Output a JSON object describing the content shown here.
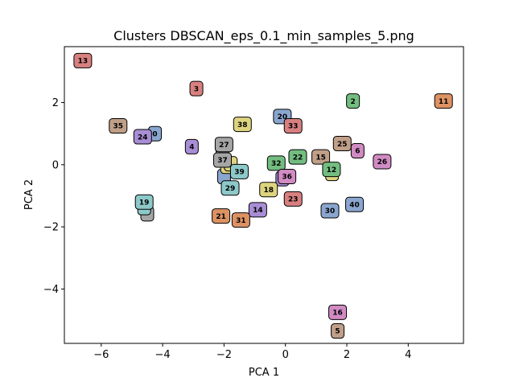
{
  "chart_data": {
    "type": "scatter",
    "title": "Clusters DBSCAN_eps_0.1_min_samples_5.png",
    "xlabel": "PCA 1",
    "ylabel": "PCA 2",
    "xlim": [
      -7.2,
      5.8
    ],
    "ylim": [
      -5.75,
      3.8
    ],
    "xticks": [
      -6,
      -4,
      -2,
      0,
      2,
      4
    ],
    "yticks": [
      -4,
      -2,
      0,
      2
    ],
    "xtick_labels": [
      "−6",
      "−4",
      "−2",
      "0",
      "2",
      "4"
    ],
    "ytick_labels": [
      "−4",
      "−2",
      "0",
      "2"
    ],
    "grid": false,
    "legend": "none",
    "points": [
      {
        "label": "",
        "x": -2.05,
        "y": 0.42,
        "color": "#a5a5a5"
      },
      {
        "label": "",
        "x": -2.0,
        "y": -0.38,
        "color": "#8aa6cf"
      },
      {
        "label": "",
        "x": -1.9,
        "y": -0.05,
        "color": "#ddd47f"
      },
      {
        "label": "",
        "x": -1.78,
        "y": 0.03,
        "color": "#ddd47f"
      },
      {
        "label": "",
        "x": -0.1,
        "y": -0.45,
        "color": "#a88ed4"
      },
      {
        "label": "",
        "x": 1.52,
        "y": -0.28,
        "color": "#ddd47f"
      },
      {
        "label": "",
        "x": -4.5,
        "y": -1.58,
        "color": "#a5a5a5"
      },
      {
        "label": "",
        "x": -4.6,
        "y": -1.38,
        "color": "#8ec9c9"
      },
      {
        "label": "13",
        "x": -6.6,
        "y": 3.35,
        "color": "#d88080"
      },
      {
        "label": "3",
        "x": -2.9,
        "y": 2.45,
        "color": "#d88080"
      },
      {
        "label": "2",
        "x": 2.2,
        "y": 2.05,
        "color": "#73bd80"
      },
      {
        "label": "11",
        "x": 5.15,
        "y": 2.05,
        "color": "#dd9264"
      },
      {
        "label": "20",
        "x": -0.1,
        "y": 1.55,
        "color": "#8aa6cf"
      },
      {
        "label": "33",
        "x": 0.25,
        "y": 1.25,
        "color": "#d88080"
      },
      {
        "label": "38",
        "x": -1.4,
        "y": 1.3,
        "color": "#ddd47f"
      },
      {
        "label": "35",
        "x": -5.45,
        "y": 1.25,
        "color": "#c09f88"
      },
      {
        "label": "0",
        "x": -4.25,
        "y": 1.0,
        "color": "#8aa6cf"
      },
      {
        "label": "24",
        "x": -4.65,
        "y": 0.9,
        "color": "#a88ed4"
      },
      {
        "label": "4",
        "x": -3.05,
        "y": 0.58,
        "color": "#a88ed4"
      },
      {
        "label": "27",
        "x": -2.0,
        "y": 0.65,
        "color": "#a5a5a5"
      },
      {
        "label": "37",
        "x": -2.05,
        "y": 0.15,
        "color": "#a5a5a5"
      },
      {
        "label": "25",
        "x": 1.85,
        "y": 0.68,
        "color": "#c09f88"
      },
      {
        "label": "6",
        "x": 2.35,
        "y": 0.45,
        "color": "#d18bc3"
      },
      {
        "label": "15",
        "x": 1.15,
        "y": 0.25,
        "color": "#c09f88"
      },
      {
        "label": "22",
        "x": 0.4,
        "y": 0.25,
        "color": "#73bd80"
      },
      {
        "label": "32",
        "x": -0.3,
        "y": 0.05,
        "color": "#73bd80"
      },
      {
        "label": "26",
        "x": 3.15,
        "y": 0.1,
        "color": "#d18bc3"
      },
      {
        "label": "12",
        "x": 1.5,
        "y": -0.15,
        "color": "#73bd80"
      },
      {
        "label": "39",
        "x": -1.5,
        "y": -0.22,
        "color": "#8ec9c9"
      },
      {
        "label": "36",
        "x": 0.05,
        "y": -0.38,
        "color": "#d18bc3"
      },
      {
        "label": "29",
        "x": -1.8,
        "y": -0.75,
        "color": "#8ec9c9"
      },
      {
        "label": "18",
        "x": -0.55,
        "y": -0.8,
        "color": "#ddd47f"
      },
      {
        "label": "23",
        "x": 0.25,
        "y": -1.1,
        "color": "#d88080"
      },
      {
        "label": "19",
        "x": -4.6,
        "y": -1.2,
        "color": "#8ec9c9"
      },
      {
        "label": "40",
        "x": 2.25,
        "y": -1.28,
        "color": "#8aa6cf"
      },
      {
        "label": "14",
        "x": -0.9,
        "y": -1.45,
        "color": "#a88ed4"
      },
      {
        "label": "30",
        "x": 1.45,
        "y": -1.48,
        "color": "#8aa6cf"
      },
      {
        "label": "21",
        "x": -2.1,
        "y": -1.65,
        "color": "#dd9264"
      },
      {
        "label": "31",
        "x": -1.45,
        "y": -1.78,
        "color": "#dd9264"
      },
      {
        "label": "16",
        "x": 1.7,
        "y": -4.75,
        "color": "#d18bc3"
      },
      {
        "label": "5",
        "x": 1.7,
        "y": -5.35,
        "color": "#c09f88"
      }
    ]
  }
}
